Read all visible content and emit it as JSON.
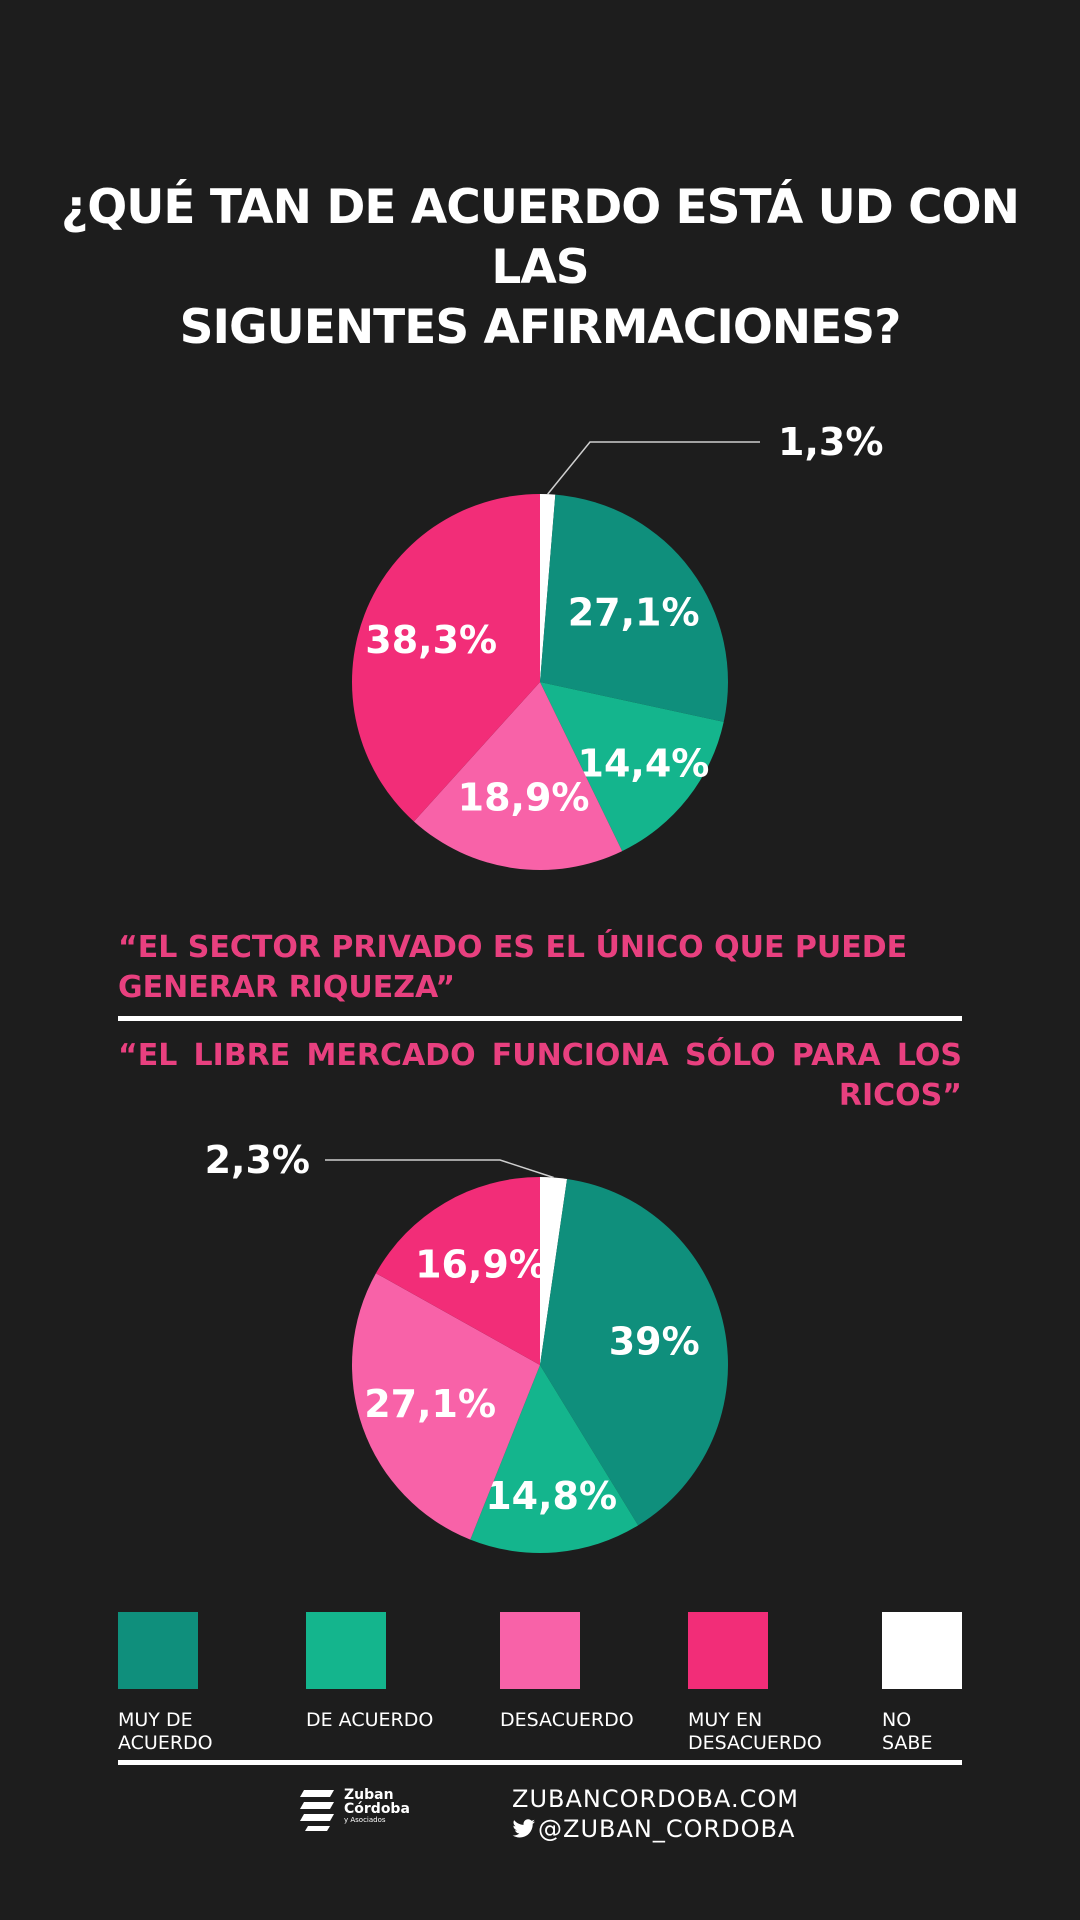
{
  "title": {
    "line1": "¿QUÉ TAN DE ACUERDO ESTÁ UD CON LAS",
    "line2": "SIGUENTES AFIRMACIONES?"
  },
  "colors": {
    "background": "#1d1d1d",
    "muy_de_acuerdo": "#0f8f7c",
    "de_acuerdo": "#14b58d",
    "desacuerdo": "#f862a8",
    "muy_en_desacuerdo": "#f22d78",
    "no_sabe": "#ffffff",
    "statement_text": "#e8407f"
  },
  "chart_data": [
    {
      "type": "pie",
      "title": "“EL SECTOR PRIVADO ES EL ÚNICO QUE PUEDE GENERAR RIQUEZA”",
      "slices": [
        {
          "name": "NO SABE",
          "value": 1.3,
          "label": "1,3%"
        },
        {
          "name": "MUY DE ACUERDO",
          "value": 27.1,
          "label": "27,1%"
        },
        {
          "name": "DE ACUERDO",
          "value": 14.4,
          "label": "14,4%"
        },
        {
          "name": "DESACUERDO",
          "value": 18.9,
          "label": "18,9%"
        },
        {
          "name": "MUY EN DESACUERDO",
          "value": 38.3,
          "label": "38,3%"
        }
      ]
    },
    {
      "type": "pie",
      "title": "“EL LIBRE MERCADO FUNCIONA SÓLO PARA LOS RICOS”",
      "slices": [
        {
          "name": "NO SABE",
          "value": 2.3,
          "label": "2,3%"
        },
        {
          "name": "MUY DE ACUERDO",
          "value": 39,
          "label": "39%"
        },
        {
          "name": "DE ACUERDO",
          "value": 14.8,
          "label": "14,8%"
        },
        {
          "name": "DESACUERDO",
          "value": 27.1,
          "label": "27,1%"
        },
        {
          "name": "MUY EN DESACUERDO",
          "value": 16.9,
          "label": "16,9%"
        }
      ]
    }
  ],
  "statements": {
    "first": "“EL SECTOR PRIVADO ES EL ÚNICO QUE PUEDE GENERAR RIQUEZA”",
    "second": "“EL LIBRE MERCADO FUNCIONA SÓLO PARA LOS RICOS”"
  },
  "legend": [
    {
      "label": "MUY DE\nACUERDO",
      "color": "#0f8f7c"
    },
    {
      "label": "DE ACUERDO",
      "color": "#14b58d"
    },
    {
      "label": "DESACUERDO",
      "color": "#f862a8"
    },
    {
      "label": "MUY EN\nDESACUERDO",
      "color": "#f22d78"
    },
    {
      "label": "NO\nSABE",
      "color": "#ffffff"
    }
  ],
  "footer": {
    "logo_name1": "Zuban",
    "logo_name2": "Córdoba",
    "logo_sub": "y Asociados",
    "website": "ZUBANCORDOBA.COM",
    "twitter": "@ZUBAN_CORDOBA",
    "twitter_icon": "bird-icon"
  }
}
